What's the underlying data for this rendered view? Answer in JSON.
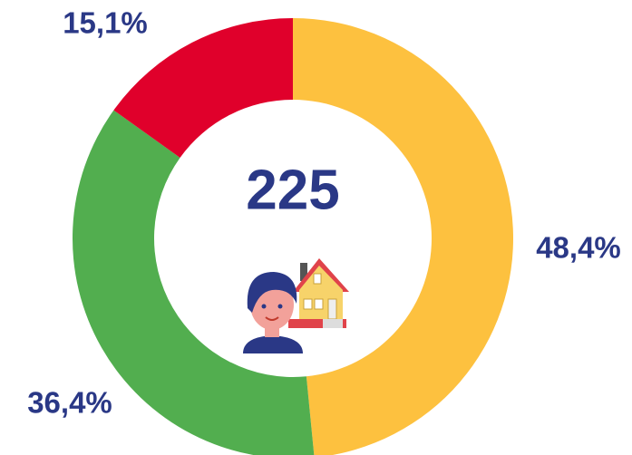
{
  "chart_data": {
    "type": "donut",
    "values": [
      48.4,
      36.4,
      15.1
    ],
    "value_labels": [
      "48,4%",
      "36,4%",
      "15,1%"
    ],
    "colors": [
      "#fdc13f",
      "#52ae4f",
      "#e0002b"
    ],
    "center_value": 225
  }
}
